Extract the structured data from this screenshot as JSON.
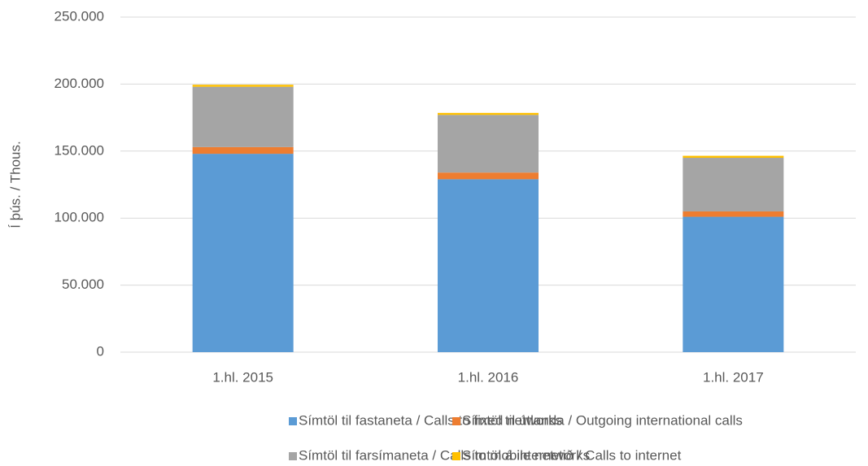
{
  "chart_data": {
    "type": "stacked_bar",
    "y_label": "Í þús. / Thous.",
    "categories": [
      "1.hl. 2015",
      "1.hl. 2016",
      "1.hl. 2017"
    ],
    "series": [
      {
        "name": "Símtöl til fastaneta / Calls to fixed networks",
        "color": "#5b9bd5",
        "values": [
          148000,
          129000,
          101000
        ]
      },
      {
        "name": "Símtöl til útlanda / Outgoing international calls",
        "color": "#ed7d31",
        "values": [
          5000,
          5000,
          4000
        ]
      },
      {
        "name": "Símtöl til farsímaneta / Calls to mobile networks",
        "color": "#a5a5a5",
        "values": [
          45000,
          43000,
          40000
        ]
      },
      {
        "name": "Símtöl á internetið / Calls to internet",
        "color": "#ffc000",
        "values": [
          1500,
          1500,
          1500
        ]
      }
    ],
    "ylim": [
      0,
      250000
    ],
    "yticks": [
      0,
      {
        "value": 50000,
        "label": "50.000"
      },
      {
        "value": 100000,
        "label": "100.000"
      },
      {
        "value": 150000,
        "label": "150.000"
      },
      {
        "value": 200000,
        "label": "200.000"
      },
      {
        "value": 250000,
        "label": "250.000"
      }
    ],
    "grid": true
  }
}
